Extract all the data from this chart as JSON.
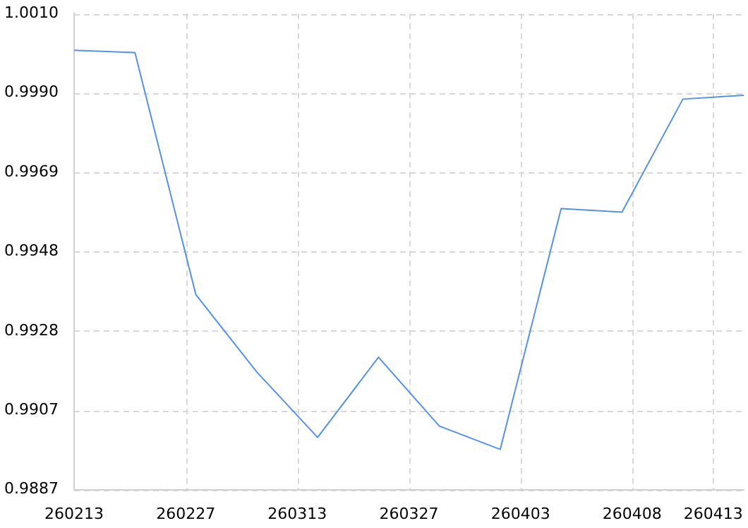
{
  "chart_data": {
    "type": "line",
    "categories": [
      "260213",
      null,
      null,
      null,
      null,
      null,
      null,
      null,
      null,
      null,
      null,
      "260227",
      null,
      null,
      null,
      null,
      null,
      null,
      null,
      null,
      null,
      null,
      "260313",
      null,
      null,
      null,
      null,
      null,
      null,
      null,
      null,
      null,
      null,
      "260327",
      null,
      null,
      null,
      null,
      null,
      null,
      null,
      null,
      null,
      null,
      "260403",
      null,
      null,
      null,
      null,
      null,
      null,
      null,
      null,
      null,
      null,
      "260408",
      null,
      null,
      null,
      null,
      null,
      null,
      null,
      "260413",
      null,
      null,
      null
    ],
    "values": [
      1.00005,
      null,
      null,
      null,
      null,
      null,
      0.99999,
      null,
      null,
      null,
      null,
      null,
      0.99374,
      null,
      null,
      null,
      null,
      null,
      0.99174,
      null,
      null,
      null,
      null,
      null,
      0.99005,
      null,
      null,
      null,
      null,
      null,
      0.99212,
      null,
      null,
      null,
      null,
      null,
      0.99034,
      null,
      null,
      null,
      null,
      null,
      0.98974,
      null,
      null,
      null,
      null,
      null,
      0.99596,
      null,
      null,
      null,
      null,
      null,
      0.99587,
      null,
      null,
      null,
      null,
      null,
      0.99879,
      null,
      null,
      null,
      null,
      null,
      0.99889
    ],
    "color": "#5592e6",
    "ylim": [
      0.9887,
      1.001
    ],
    "yticks": [
      0.9887,
      {
        "value": 0.99075,
        "label": "0.9907"
      },
      0.9928,
      {
        "value": 0.99485,
        "label": "0.9948"
      },
      0.9969,
      {
        "value": 0.99895,
        "label": "0.9990"
      },
      {
        "value": 1.001,
        "label": "1.0010"
      }
    ],
    "grid": true,
    "marker": "none"
  }
}
